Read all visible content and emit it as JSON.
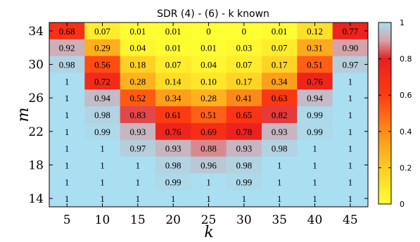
{
  "chart_data": {
    "type": "heatmap",
    "title": "SDR (4) - (6) - k known",
    "xlabel": "k",
    "ylabel": "m",
    "x": [
      5,
      10,
      15,
      20,
      25,
      30,
      35,
      40,
      45
    ],
    "y": [
      14,
      16,
      18,
      20,
      22,
      24,
      26,
      28,
      30,
      32,
      34
    ],
    "x_tick_labels": [
      "5",
      "10",
      "15",
      "20",
      "25",
      "30",
      "35",
      "40",
      "45"
    ],
    "y_tick_labels": [
      "14",
      "18",
      "22",
      "26",
      "30",
      "34"
    ],
    "y_tick_values": [
      14,
      18,
      22,
      26,
      30,
      34
    ],
    "values": [
      [
        1,
        1,
        1,
        1,
        1,
        1,
        1,
        1,
        1
      ],
      [
        1,
        1,
        1,
        0.99,
        1,
        0.99,
        1,
        1,
        1
      ],
      [
        1,
        1,
        1,
        0.98,
        0.96,
        0.98,
        1,
        1,
        1
      ],
      [
        1,
        1,
        0.97,
        0.93,
        0.88,
        0.93,
        0.98,
        1,
        1
      ],
      [
        1,
        0.99,
        0.93,
        0.76,
        0.69,
        0.78,
        0.93,
        0.99,
        1
      ],
      [
        1,
        0.98,
        0.83,
        0.61,
        0.51,
        0.65,
        0.82,
        0.99,
        1
      ],
      [
        1,
        0.94,
        0.52,
        0.34,
        0.28,
        0.41,
        0.63,
        0.94,
        1
      ],
      [
        1,
        0.72,
        0.28,
        0.14,
        0.1,
        0.17,
        0.34,
        0.76,
        1
      ],
      [
        0.98,
        0.56,
        0.18,
        0.07,
        0.04,
        0.07,
        0.17,
        0.51,
        0.97
      ],
      [
        0.92,
        0.29,
        0.04,
        0.01,
        0.01,
        0.03,
        0.07,
        0.31,
        0.9
      ],
      [
        0.68,
        0.07,
        0.01,
        0.01,
        0,
        0,
        0.01,
        0.12,
        0.77
      ]
    ],
    "value_labels": [
      [
        "1",
        "1",
        "1",
        "1",
        "1",
        "1",
        "1",
        "1",
        "1"
      ],
      [
        "1",
        "1",
        "1",
        "0.99",
        "1",
        "0.99",
        "1",
        "1",
        "1"
      ],
      [
        "1",
        "1",
        "1",
        "0.98",
        "0.96",
        "0.98",
        "1",
        "1",
        "1"
      ],
      [
        "1",
        "1",
        "0.97",
        "0.93",
        "0.88",
        "0.93",
        "0.98",
        "1",
        "1"
      ],
      [
        "1",
        "0.99",
        "0.93",
        "0.76",
        "0.69",
        "0.78",
        "0.93",
        "0.99",
        "1"
      ],
      [
        "1",
        "0.98",
        "0.83",
        "0.61",
        "0.51",
        "0.65",
        "0.82",
        "0.99",
        "1"
      ],
      [
        "1",
        "0.94",
        "0.52",
        "0.34",
        "0.28",
        "0.41",
        "0.63",
        "0.94",
        "1"
      ],
      [
        "1",
        "0.72",
        "0.28",
        "0.14",
        "0.10",
        "0.17",
        "0.34",
        "0.76",
        "1"
      ],
      [
        "0.98",
        "0.56",
        "0.18",
        "0.07",
        "0.04",
        "0.07",
        "0.17",
        "0.51",
        "0.97"
      ],
      [
        "0.92",
        "0.29",
        "0.04",
        "0.01",
        "0.01",
        "0.03",
        "0.07",
        "0.31",
        "0.90"
      ],
      [
        "0.68",
        "0.07",
        "0.01",
        "0.01",
        "0",
        "0",
        "0.01",
        "0.12",
        "0.77"
      ]
    ],
    "colorbar": {
      "range": [
        0,
        1
      ],
      "ticks": [
        0,
        0.2,
        0.4,
        0.6,
        0.8,
        1
      ],
      "tick_labels": [
        "0",
        "0.2",
        "0.4",
        "0.6",
        "0.8",
        "1"
      ],
      "stops": [
        {
          "value": 0,
          "color": "#ffff33"
        },
        {
          "value": 0.2,
          "color": "#ffcc22"
        },
        {
          "value": 0.4,
          "color": "#ff8c1a"
        },
        {
          "value": 0.6,
          "color": "#ff3b12"
        },
        {
          "value": 0.8,
          "color": "#ea1f1f"
        },
        {
          "value": 0.9,
          "color": "#d4a3ab"
        },
        {
          "value": 1,
          "color": "#a9dff0"
        }
      ]
    }
  }
}
